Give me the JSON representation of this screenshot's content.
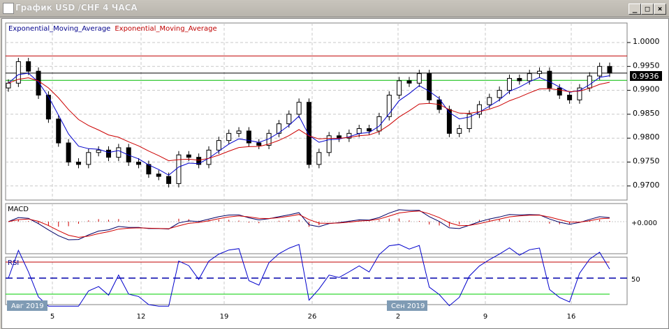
{
  "window": {
    "title": "График USD /CHF  4 ЧАСА",
    "buttons": [
      "_",
      "□",
      "×"
    ]
  },
  "legend": [
    {
      "label": "Exponential_Moving_Average",
      "color": "#00008b"
    },
    {
      "label": "Exponential_Moving_Average",
      "color": "#c00000"
    }
  ],
  "colors": {
    "bull": "#ffffff",
    "bear": "#000000",
    "ema_fast": "#0000cc",
    "ema_slow": "#cc0000",
    "resistance": "#c00000",
    "support": "#00bb00",
    "current": "#000000"
  },
  "chart_data": {
    "type": "candlestick",
    "price_ticks": [
      "1.0000",
      "0.9950",
      "0.9900",
      "0.9850",
      "0.9800",
      "0.9750",
      "0.9700"
    ],
    "ylim": [
      0.9665,
      1.0035
    ],
    "current_price": "0.9936",
    "levels": {
      "resistance": 0.9972,
      "current": 0.9936,
      "support": 0.9921
    },
    "x_tick_labels": [
      "5",
      "12",
      "19",
      "26",
      "2",
      "9",
      "16"
    ],
    "month_labels": [
      "Авг 2019",
      "Сен 2019"
    ],
    "closes": [
      0.9915,
      0.996,
      0.994,
      0.989,
      0.984,
      0.979,
      0.975,
      0.9745,
      0.977,
      0.9775,
      0.976,
      0.978,
      0.975,
      0.9745,
      0.9725,
      0.972,
      0.9705,
      0.9765,
      0.976,
      0.9745,
      0.9775,
      0.9795,
      0.981,
      0.9815,
      0.979,
      0.9785,
      0.981,
      0.983,
      0.985,
      0.9875,
      0.9745,
      0.977,
      0.9805,
      0.98,
      0.981,
      0.982,
      0.9815,
      0.9845,
      0.989,
      0.992,
      0.9915,
      0.9935,
      0.988,
      0.986,
      0.981,
      0.982,
      0.985,
      0.987,
      0.9885,
      0.99,
      0.9925,
      0.992,
      0.9935,
      0.994,
      0.9905,
      0.989,
      0.988,
      0.9905,
      0.993,
      0.995,
      0.9936
    ],
    "macd": {
      "label": "MACD",
      "zero_label": "+0.000"
    },
    "rsi": {
      "label": "RSI",
      "levels": [
        70,
        50,
        30
      ],
      "level_label": "50"
    }
  }
}
